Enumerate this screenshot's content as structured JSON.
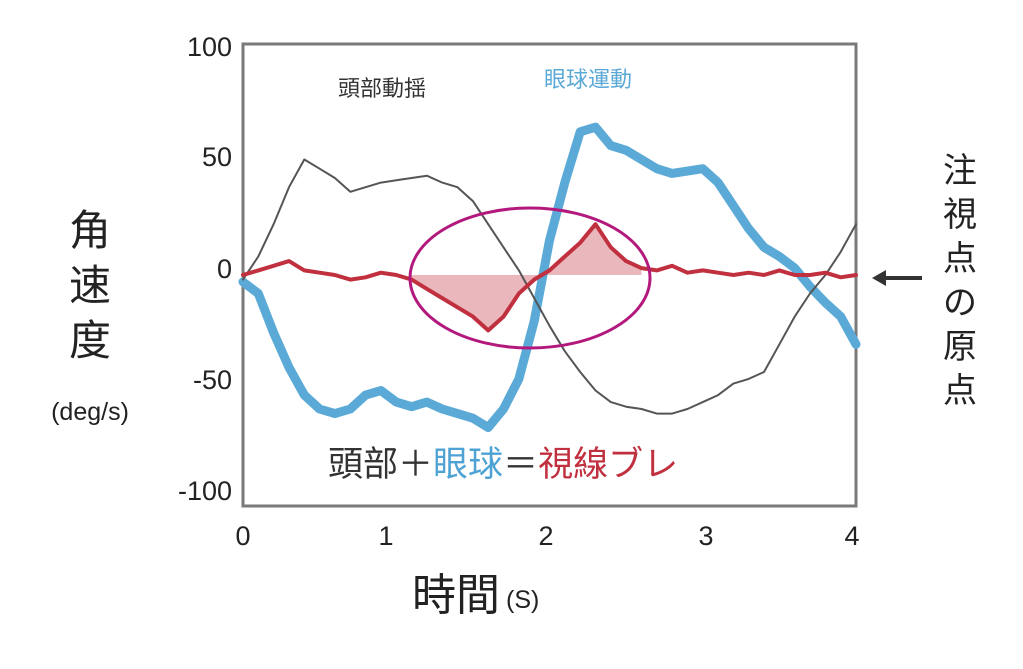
{
  "chart_data": {
    "type": "line",
    "xlabel": "時間",
    "xlabel_unit": "(S)",
    "ylabel": "角速度",
    "ylabel_unit": "(deg/s)",
    "xlim": [
      0,
      4
    ],
    "ylim": [
      -100,
      100
    ],
    "xticks": [
      "0",
      "1",
      "2",
      "3",
      "4"
    ],
    "yticks": [
      "100",
      "50",
      "0",
      "-50",
      "-100"
    ],
    "grid": false,
    "legend": "top",
    "series": [
      {
        "name": "頭部動揺",
        "color": "#555555",
        "x": [
          0,
          0.1,
          0.2,
          0.3,
          0.4,
          0.5,
          0.6,
          0.7,
          0.8,
          0.9,
          1.0,
          1.1,
          1.2,
          1.3,
          1.4,
          1.5,
          1.6,
          1.7,
          1.8,
          1.9,
          2.0,
          2.1,
          2.2,
          2.3,
          2.4,
          2.5,
          2.6,
          2.7,
          2.8,
          2.9,
          3.0,
          3.1,
          3.2,
          3.3,
          3.4,
          3.5,
          3.6,
          3.7,
          3.8,
          3.9,
          4.0
        ],
        "values": [
          -2,
          8,
          22,
          38,
          50,
          46,
          42,
          36,
          38,
          40,
          41,
          42,
          43,
          40,
          38,
          32,
          22,
          12,
          2,
          -10,
          -22,
          -33,
          -42,
          -50,
          -55,
          -57,
          -58,
          -60,
          -60,
          -58,
          -55,
          -52,
          -47,
          -45,
          -42,
          -30,
          -18,
          -8,
          0,
          10,
          22
        ]
      },
      {
        "name": "眼球運動",
        "color": "#5aa9d6",
        "x": [
          0,
          0.1,
          0.2,
          0.3,
          0.4,
          0.5,
          0.6,
          0.7,
          0.8,
          0.9,
          1.0,
          1.1,
          1.2,
          1.3,
          1.4,
          1.5,
          1.6,
          1.7,
          1.8,
          1.9,
          2.0,
          2.1,
          2.2,
          2.3,
          2.4,
          2.5,
          2.6,
          2.7,
          2.8,
          2.9,
          3.0,
          3.1,
          3.2,
          3.3,
          3.4,
          3.5,
          3.6,
          3.7,
          3.8,
          3.9,
          4.0
        ],
        "values": [
          -3,
          -8,
          -25,
          -40,
          -52,
          -58,
          -60,
          -58,
          -52,
          -50,
          -55,
          -57,
          -55,
          -58,
          -60,
          -62,
          -66,
          -58,
          -45,
          -20,
          15,
          40,
          62,
          64,
          56,
          54,
          50,
          46,
          44,
          45,
          46,
          40,
          30,
          20,
          12,
          8,
          3,
          -5,
          -12,
          -18,
          -30
        ]
      },
      {
        "name": "視線ブレ",
        "color": "#c0303f",
        "x": [
          0,
          0.1,
          0.2,
          0.3,
          0.4,
          0.5,
          0.6,
          0.7,
          0.8,
          0.9,
          1.0,
          1.1,
          1.2,
          1.3,
          1.4,
          1.5,
          1.6,
          1.7,
          1.8,
          1.9,
          2.0,
          2.1,
          2.2,
          2.3,
          2.4,
          2.5,
          2.6,
          2.7,
          2.8,
          2.9,
          3.0,
          3.1,
          3.2,
          3.3,
          3.4,
          3.5,
          3.6,
          3.7,
          3.8,
          3.9,
          4.0
        ],
        "values": [
          0,
          2,
          4,
          6,
          2,
          1,
          0,
          -2,
          -1,
          1,
          0,
          -2,
          -6,
          -10,
          -14,
          -18,
          -24,
          -18,
          -8,
          -2,
          2,
          8,
          14,
          22,
          12,
          6,
          3,
          2,
          4,
          1,
          2,
          1,
          0,
          1,
          0,
          2,
          0,
          0,
          1,
          -1,
          0
        ]
      }
    ],
    "equation": {
      "head": "頭部",
      "plus": "＋",
      "eye": "眼球",
      "equals": "＝",
      "gaze": "視線ブレ",
      "head_color": "#333333",
      "eye_color": "#4fa3d4",
      "gaze_color": "#c0303f"
    },
    "annotation": {
      "text": "注視点の原点",
      "arrow": "←",
      "ellipse_color": "#b3197d"
    }
  }
}
